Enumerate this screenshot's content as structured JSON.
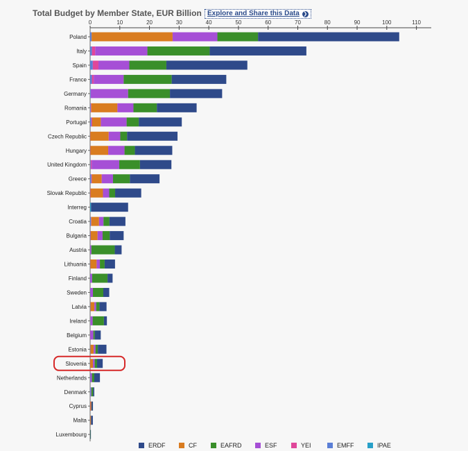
{
  "title": "Total Budget by Member State, EUR Billion",
  "explore_link": "Explore and Share this Data",
  "chart_data": {
    "type": "bar",
    "orientation": "horizontal",
    "stacked": true,
    "x_ticks": [
      0,
      10,
      20,
      30,
      40,
      50,
      60,
      70,
      80,
      90,
      100,
      110
    ],
    "xlim": [
      0,
      115
    ],
    "highlighted_category": "Slovenia",
    "categories": [
      "Poland",
      "Italy",
      "Spain",
      "France",
      "Germany",
      "Romania",
      "Portugal",
      "Czech Republic",
      "Hungary",
      "United Kingdom",
      "Greece",
      "Slovak Republic",
      "Interreg",
      "Croatia",
      "Bulgaria",
      "Austria",
      "Lithuania",
      "Finland",
      "Sweden",
      "Latvia",
      "Ireland",
      "Belgium",
      "Estonia",
      "Slovenia",
      "Netherlands",
      "Denmark",
      "Cyprus",
      "Malta",
      "Luxembourg"
    ],
    "series": [
      {
        "name": "EMFF",
        "color": "#5b7fd6",
        "values": [
          0.5,
          0.6,
          0.9,
          0.6,
          0.2,
          0.2,
          0.4,
          0.03,
          0.04,
          0.2,
          0.4,
          0.02,
          0,
          0.3,
          0.1,
          0.01,
          0.06,
          0.07,
          0.1,
          0.1,
          0.15,
          0.04,
          0.1,
          0.02,
          0.1,
          0.2,
          0.04,
          0.02,
          0
        ]
      },
      {
        "name": "YEI",
        "color": "#e0479a",
        "values": [
          0,
          1.1,
          1.9,
          0.6,
          0,
          0.2,
          0.3,
          0.03,
          0.05,
          0.3,
          0.2,
          0.1,
          0,
          0.1,
          0.1,
          0,
          0.03,
          0,
          0.04,
          0.03,
          0.1,
          0.04,
          0,
          0.02,
          0,
          0,
          0.01,
          0,
          0
        ]
      },
      {
        "name": "IPAE",
        "color": "#28a0c8",
        "values": [
          0,
          0,
          0,
          0,
          0,
          0,
          0,
          0,
          0,
          0,
          0,
          0,
          0.3,
          0,
          0,
          0,
          0,
          0,
          0,
          0,
          0,
          0,
          0,
          0,
          0,
          0,
          0,
          0,
          0
        ]
      },
      {
        "name": "CF",
        "color": "#d97c20",
        "values": [
          27.3,
          0,
          0,
          0,
          0,
          8.8,
          2.9,
          6.2,
          6.0,
          0,
          3.3,
          4.2,
          0,
          2.6,
          2.3,
          0,
          2.1,
          0,
          0,
          1.3,
          0,
          0,
          1.1,
          0.9,
          0,
          0,
          0.3,
          0.2,
          0
        ]
      },
      {
        "name": "ESF",
        "color": "#a64fd6",
        "values": [
          15.1,
          17.6,
          10.4,
          10.1,
          12.6,
          5.4,
          8.7,
          3.9,
          5.5,
          9.3,
          3.8,
          2.1,
          0,
          1.5,
          1.7,
          0.4,
          1.1,
          0.6,
          0.8,
          0.6,
          0.6,
          1.0,
          0.6,
          0.6,
          0.5,
          0.2,
          0.1,
          0.1,
          0.02
        ]
      },
      {
        "name": "EAFRD",
        "color": "#3a8f2a",
        "values": [
          13.7,
          21.0,
          12.5,
          16.2,
          14.1,
          7.9,
          4.1,
          2.3,
          3.5,
          7.0,
          5.7,
          2.0,
          0,
          2.0,
          2.4,
          7.9,
          1.6,
          5.2,
          3.5,
          1.1,
          3.8,
          0.5,
          0.8,
          0.8,
          0.8,
          0.6,
          0.1,
          0.1,
          0.1
        ]
      },
      {
        "name": "ERDF",
        "color": "#2f4a8a",
        "values": [
          47.6,
          32.6,
          27.3,
          18.4,
          17.6,
          13.4,
          14.5,
          17.0,
          12.6,
          10.6,
          10.0,
          8.8,
          12.5,
          5.4,
          4.7,
          2.3,
          3.5,
          1.7,
          2.0,
          2.4,
          1.0,
          2.0,
          2.9,
          1.9,
          1.9,
          0.4,
          0.4,
          0.5,
          0.02
        ]
      }
    ],
    "legend": {
      "position": "bottom",
      "order": [
        "ERDF",
        "CF",
        "EAFRD",
        "ESF",
        "YEI",
        "EMFF",
        "IPAE"
      ]
    }
  }
}
